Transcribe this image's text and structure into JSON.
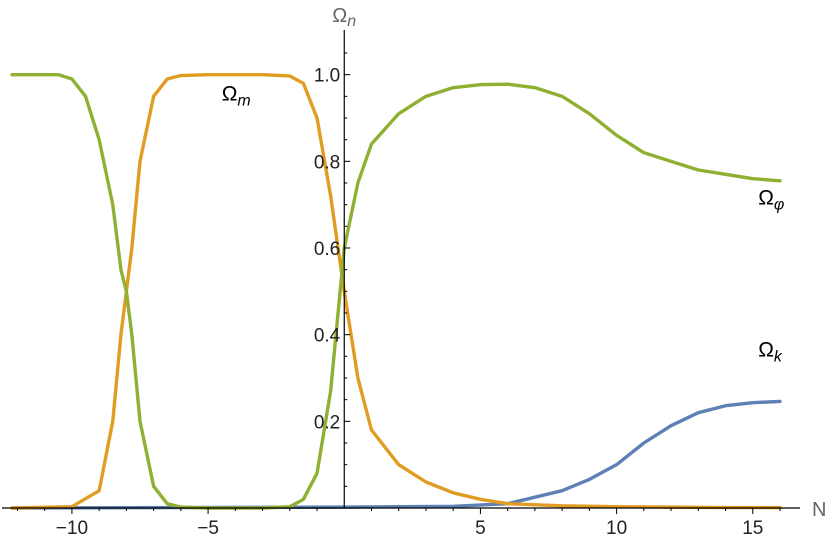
{
  "chart_data": {
    "type": "line",
    "xlabel": "N",
    "ylabel": {
      "base": "Ω",
      "sub": "n"
    },
    "xlim": [
      -12.2,
      16
    ],
    "ylim": [
      0,
      1.08
    ],
    "x_ticks": [
      -10,
      -5,
      5,
      10,
      15
    ],
    "y_ticks": [
      0.2,
      0.4,
      0.6,
      0.8,
      1.0
    ],
    "x_tick_labels": [
      "−10",
      "−5",
      "5",
      "10",
      "15"
    ],
    "y_tick_labels": [
      "0.2",
      "0.4",
      "0.6",
      "0.8",
      "1.0"
    ],
    "grid": false,
    "series": [
      {
        "name": "Ω_k",
        "label": {
          "base": "Ω",
          "sub": "k"
        },
        "color": "#5E81B5",
        "points": [
          [
            -12.2,
            0
          ],
          [
            0,
            0.002
          ],
          [
            4,
            0.004
          ],
          [
            6,
            0.01
          ],
          [
            8,
            0.04
          ],
          [
            9,
            0.066
          ],
          [
            10,
            0.1
          ],
          [
            11,
            0.15
          ],
          [
            12,
            0.19
          ],
          [
            13,
            0.22
          ],
          [
            14,
            0.236
          ],
          [
            15,
            0.243
          ],
          [
            16,
            0.246
          ]
        ]
      },
      {
        "name": "Ω_m",
        "label": {
          "base": "Ω",
          "sub": "m"
        },
        "color": "#E19C24",
        "points": [
          [
            -12.2,
            0
          ],
          [
            -10,
            0.003
          ],
          [
            -9,
            0.04
          ],
          [
            -8.5,
            0.2
          ],
          [
            -8.2,
            0.4
          ],
          [
            -8,
            0.5
          ],
          [
            -7.8,
            0.6
          ],
          [
            -7.5,
            0.8
          ],
          [
            -7,
            0.95
          ],
          [
            -6.5,
            0.99
          ],
          [
            -6,
            0.998
          ],
          [
            -5,
            1.0
          ],
          [
            -4,
            1.0
          ],
          [
            -3,
            1.0
          ],
          [
            -2,
            0.997
          ],
          [
            -1.5,
            0.98
          ],
          [
            -1,
            0.9
          ],
          [
            -0.5,
            0.72
          ],
          [
            0,
            0.5
          ],
          [
            0.5,
            0.3
          ],
          [
            1,
            0.18
          ],
          [
            2,
            0.1
          ],
          [
            3,
            0.06
          ],
          [
            4,
            0.035
          ],
          [
            5,
            0.02
          ],
          [
            6,
            0.01
          ],
          [
            8,
            0.005
          ],
          [
            10,
            0.003
          ],
          [
            12,
            0.002
          ],
          [
            14,
            0.001
          ],
          [
            16,
            0.001
          ]
        ]
      },
      {
        "name": "Ω_φ",
        "label": {
          "base": "Ω",
          "sub": "φ"
        },
        "color": "#8FB032",
        "points": [
          [
            -12.2,
            1.0
          ],
          [
            -10.5,
            1.0
          ],
          [
            -10,
            0.99
          ],
          [
            -9.5,
            0.95
          ],
          [
            -9,
            0.85
          ],
          [
            -8.5,
            0.7
          ],
          [
            -8.2,
            0.55
          ],
          [
            -8,
            0.5
          ],
          [
            -7.8,
            0.4
          ],
          [
            -7.5,
            0.2
          ],
          [
            -7,
            0.05
          ],
          [
            -6.5,
            0.01
          ],
          [
            -6,
            0.002
          ],
          [
            -5,
            0
          ],
          [
            -3,
            0
          ],
          [
            -2,
            0.003
          ],
          [
            -1.5,
            0.02
          ],
          [
            -1,
            0.08
          ],
          [
            -0.5,
            0.27
          ],
          [
            0,
            0.6
          ],
          [
            0.5,
            0.75
          ],
          [
            1,
            0.84
          ],
          [
            2,
            0.91
          ],
          [
            3,
            0.95
          ],
          [
            4,
            0.97
          ],
          [
            5,
            0.977
          ],
          [
            6,
            0.978
          ],
          [
            7,
            0.97
          ],
          [
            8,
            0.95
          ],
          [
            9,
            0.91
          ],
          [
            10,
            0.86
          ],
          [
            11,
            0.82
          ],
          [
            12,
            0.8
          ],
          [
            13,
            0.78
          ],
          [
            14,
            0.77
          ],
          [
            15,
            0.76
          ],
          [
            16,
            0.755
          ]
        ]
      }
    ],
    "annotations": [
      {
        "series": "Ω_m",
        "x": -4.5,
        "y": 0.94
      },
      {
        "series": "Ω_φ",
        "x": 15.2,
        "y": 0.7
      },
      {
        "series": "Ω_k",
        "x": 15.2,
        "y": 0.35
      }
    ]
  }
}
